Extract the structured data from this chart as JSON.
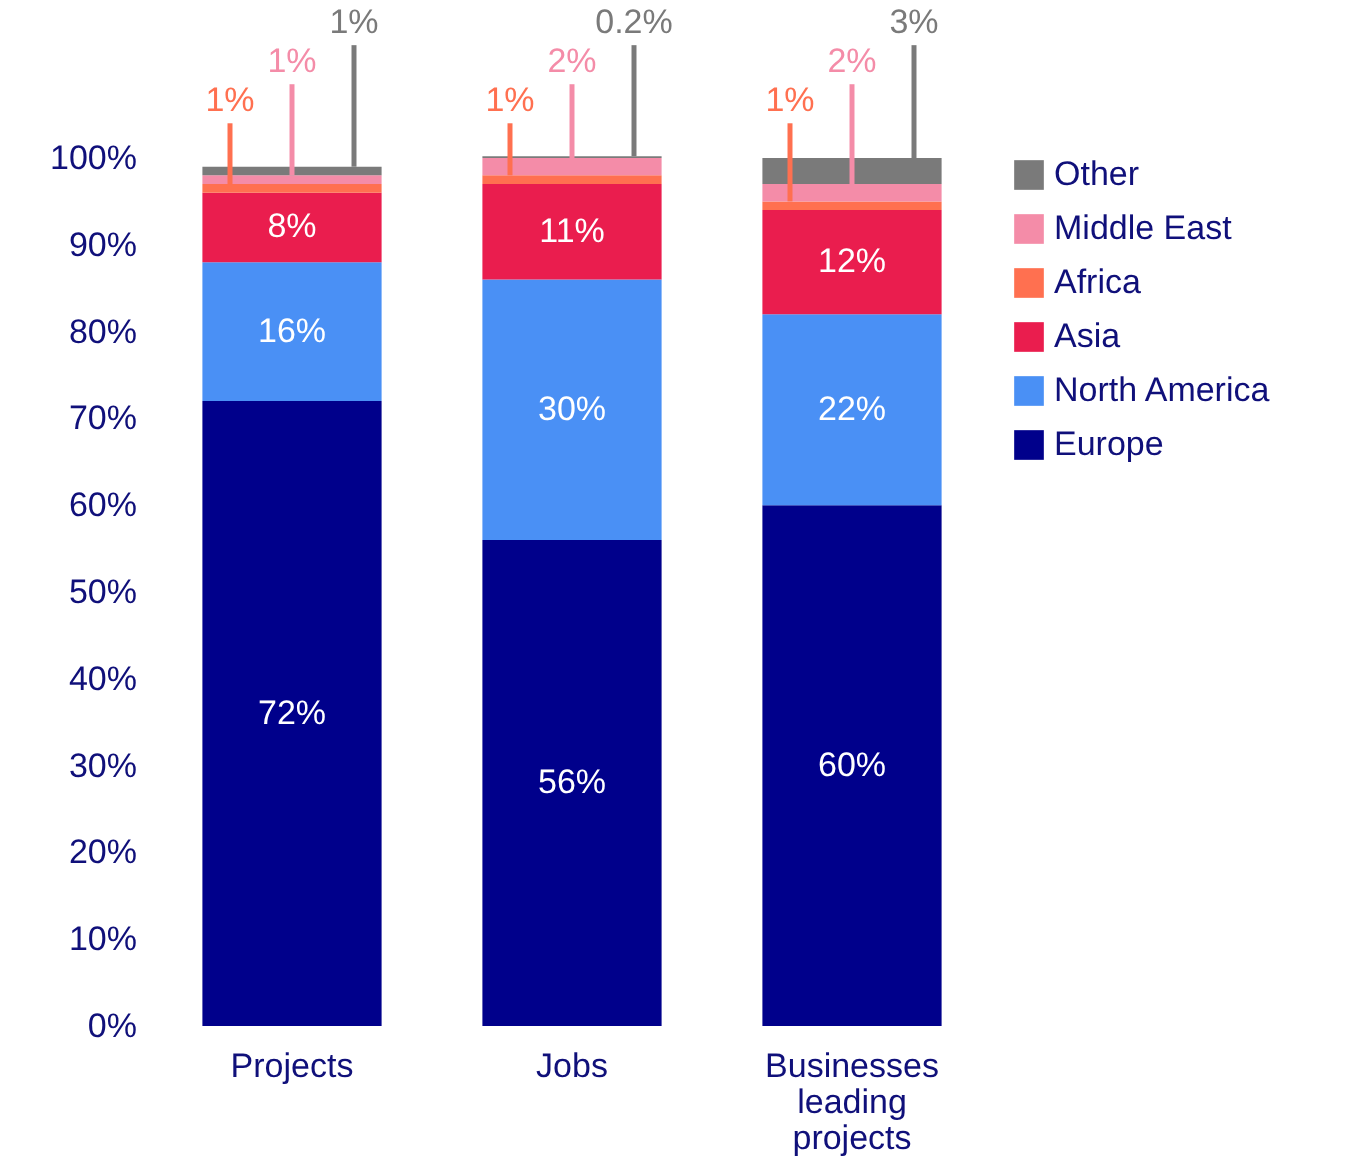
{
  "chart_data": {
    "type": "bar",
    "stacked": true,
    "categories": [
      "Projects",
      "Jobs",
      "Businesses leading projects"
    ],
    "series": [
      {
        "name": "Europe",
        "color": "#00008b",
        "values": [
          72,
          56,
          60
        ],
        "value_labels": [
          "72%",
          "56%",
          "60%"
        ]
      },
      {
        "name": "North America",
        "color": "#4a90f5",
        "values": [
          16,
          30,
          22
        ],
        "value_labels": [
          "16%",
          "30%",
          "22%"
        ]
      },
      {
        "name": "Asia",
        "color": "#ea1d4e",
        "values": [
          8,
          11,
          12
        ],
        "value_labels": [
          "8%",
          "11%",
          "12%"
        ]
      },
      {
        "name": "Africa",
        "color": "#ff7050",
        "values": [
          1,
          1,
          1
        ],
        "value_labels": [
          "1%",
          "1%",
          "1%"
        ]
      },
      {
        "name": "Middle East",
        "color": "#f48ca8",
        "values": [
          1,
          2,
          2
        ],
        "value_labels": [
          "1%",
          "2%",
          "2%"
        ]
      },
      {
        "name": "Other",
        "color": "#7a7a7a",
        "values": [
          1,
          0.2,
          3
        ],
        "value_labels": [
          "1%",
          "0.2%",
          "3%"
        ]
      }
    ],
    "ylim": [
      0,
      100
    ],
    "yticks": [
      {
        "value": 0,
        "label": "0%"
      },
      {
        "value": 10,
        "label": "10%"
      },
      {
        "value": 20,
        "label": "20%"
      },
      {
        "value": 30,
        "label": "30%"
      },
      {
        "value": 40,
        "label": "40%"
      },
      {
        "value": 50,
        "label": "50%"
      },
      {
        "value": 60,
        "label": "60%"
      },
      {
        "value": 70,
        "label": "70%"
      },
      {
        "value": 80,
        "label": "80%"
      },
      {
        "value": 90,
        "label": "90%"
      },
      {
        "value": 100,
        "label": "100%"
      }
    ],
    "grid": false,
    "legend": "top right"
  }
}
